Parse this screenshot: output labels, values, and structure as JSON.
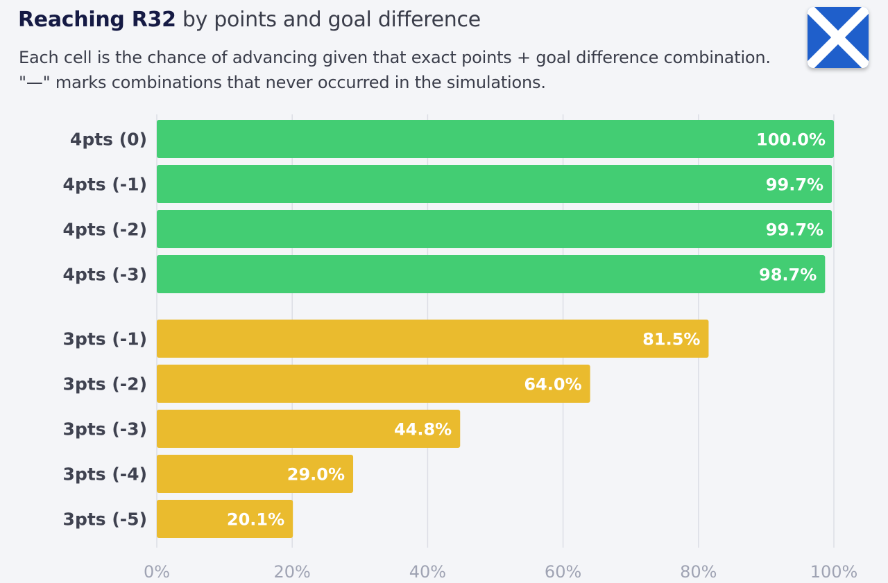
{
  "title": {
    "bold": "Reaching R32",
    "rest": " by points and goal difference"
  },
  "subtitle": "Each cell is the chance of advancing given that exact points + goal difference combination. \"—\" marks combinations that never occurred in the simulations.",
  "flag": {
    "name": "scotland-flag",
    "colors": {
      "field": "#1f5fcb",
      "saltire": "#ffffff"
    }
  },
  "colors": {
    "four_pts": "#43cd73",
    "three_pts": "#eabb2e",
    "grid": "#dcdee5",
    "tick_label": "#9fa3b3"
  },
  "chart_data": {
    "type": "bar",
    "orientation": "horizontal",
    "categories": [
      "4pts (0)",
      "4pts (-1)",
      "4pts (-2)",
      "4pts (-3)",
      "3pts (-1)",
      "3pts (-2)",
      "3pts (-3)",
      "3pts (-4)",
      "3pts (-5)"
    ],
    "values": [
      100.0,
      99.7,
      99.7,
      98.7,
      81.5,
      64.0,
      44.8,
      29.0,
      20.1
    ],
    "labels": [
      "100.0%",
      "99.7%",
      "99.7%",
      "98.7%",
      "81.5%",
      "64.0%",
      "44.8%",
      "29.0%",
      "20.1%"
    ],
    "groups": [
      "four_pts",
      "four_pts",
      "four_pts",
      "four_pts",
      "three_pts",
      "three_pts",
      "three_pts",
      "three_pts",
      "three_pts"
    ],
    "xlim": [
      0,
      100
    ],
    "xticks": [
      0,
      20,
      40,
      60,
      80,
      100
    ],
    "xtick_labels": [
      "0%",
      "20%",
      "40%",
      "60%",
      "80%",
      "100%"
    ],
    "grid": "vertical"
  }
}
